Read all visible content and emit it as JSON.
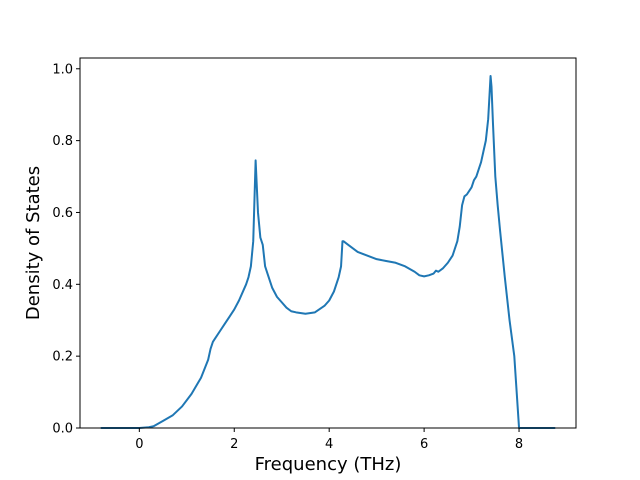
{
  "chart_data": {
    "type": "line",
    "title": "",
    "xlabel": "Frequency (THz)",
    "ylabel": "Density of States",
    "xlim": [
      -1.25,
      9.2
    ],
    "ylim": [
      0.0,
      1.03
    ],
    "grid": false,
    "legend": "none",
    "x_ticks": [
      0,
      2,
      4,
      6,
      8
    ],
    "x_tick_labels": [
      "0",
      "2",
      "4",
      "6",
      "8"
    ],
    "y_ticks": [
      0.0,
      0.2,
      0.4,
      0.6,
      0.8,
      1.0
    ],
    "y_tick_labels": [
      "0.0",
      "0.2",
      "0.4",
      "0.6",
      "0.8",
      "1.0"
    ],
    "series": [
      {
        "color": "#1f77b4",
        "x": [
          -0.8,
          -0.4,
          0.0,
          0.2,
          0.3,
          0.5,
          0.7,
          0.9,
          1.1,
          1.3,
          1.45,
          1.5,
          1.55,
          1.6,
          1.7,
          1.8,
          1.9,
          2.0,
          2.1,
          2.2,
          2.25,
          2.3,
          2.35,
          2.4,
          2.45,
          2.5,
          2.55,
          2.6,
          2.65,
          2.7,
          2.8,
          2.9,
          3.0,
          3.1,
          3.2,
          3.3,
          3.5,
          3.7,
          3.9,
          4.0,
          4.1,
          4.2,
          4.25,
          4.28,
          4.3,
          4.4,
          4.6,
          4.8,
          5.0,
          5.2,
          5.4,
          5.6,
          5.8,
          5.9,
          6.0,
          6.1,
          6.2,
          6.25,
          6.3,
          6.4,
          6.5,
          6.6,
          6.7,
          6.75,
          6.8,
          6.85,
          6.9,
          7.0,
          7.05,
          7.1,
          7.15,
          7.2,
          7.25,
          7.3,
          7.35,
          7.4,
          7.42,
          7.45,
          7.5,
          7.55,
          7.6,
          7.7,
          7.8,
          7.9,
          7.95,
          8.0,
          8.4,
          8.75
        ],
        "y": [
          0.0,
          0.0,
          0.0,
          0.002,
          0.005,
          0.02,
          0.035,
          0.06,
          0.095,
          0.14,
          0.19,
          0.22,
          0.24,
          0.25,
          0.27,
          0.29,
          0.31,
          0.33,
          0.355,
          0.385,
          0.4,
          0.42,
          0.45,
          0.52,
          0.745,
          0.6,
          0.53,
          0.51,
          0.45,
          0.43,
          0.39,
          0.365,
          0.35,
          0.335,
          0.325,
          0.322,
          0.318,
          0.322,
          0.34,
          0.355,
          0.38,
          0.42,
          0.45,
          0.52,
          0.52,
          0.51,
          0.49,
          0.48,
          0.47,
          0.465,
          0.46,
          0.45,
          0.435,
          0.425,
          0.422,
          0.425,
          0.43,
          0.438,
          0.435,
          0.445,
          0.46,
          0.48,
          0.52,
          0.56,
          0.62,
          0.645,
          0.65,
          0.67,
          0.69,
          0.7,
          0.72,
          0.74,
          0.77,
          0.8,
          0.86,
          0.98,
          0.95,
          0.85,
          0.7,
          0.62,
          0.55,
          0.42,
          0.3,
          0.2,
          0.1,
          0.0,
          0.0,
          0.0
        ]
      }
    ]
  }
}
